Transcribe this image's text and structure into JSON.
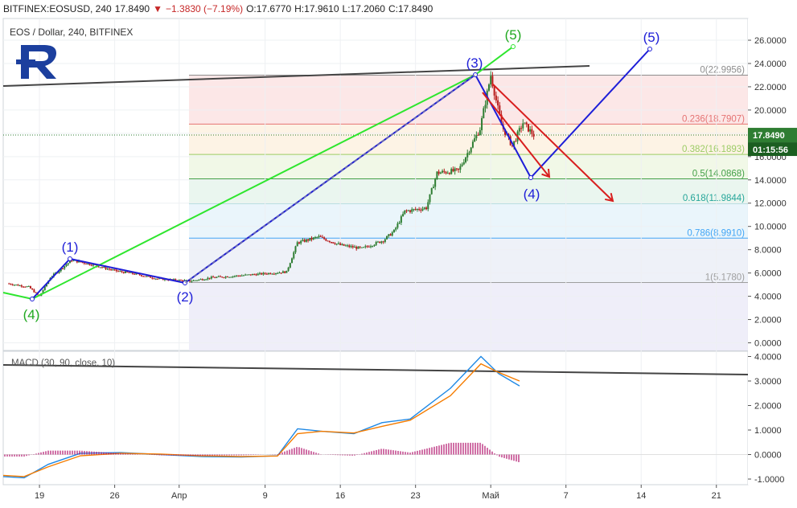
{
  "header": {
    "symbol": "BITFINEX:EOSUSD, 240",
    "last": "17.8490",
    "change": "−1.3830 (−7.19%)",
    "o_label": "O:",
    "o": "17.6770",
    "h_label": "H:",
    "h": "17.9610",
    "l_label": "L:",
    "l": "17.2060",
    "c_label": "C:",
    "c": "17.8490"
  },
  "legend": {
    "title": "EOS / Dollar, 240, BITFINEX"
  },
  "macd_label": "MACD (30, 90, close, 10)",
  "price_badge": "17.8490",
  "time_badge": "01:15:56",
  "colors": {
    "up": "#2e7d32",
    "down": "#b71c1c",
    "wave_green": "#2ee62e",
    "wave_blue": "#1e1ed8",
    "arrow_red": "#d81e1e",
    "trend_line": "#444444",
    "macd": "#1e88e5",
    "signal": "#f57c00",
    "hist": "#b0106a"
  },
  "chart_data": [
    {
      "type": "candlestick",
      "title": "EOS / Dollar, 240, BITFINEX",
      "x_tick_labels": [
        "19",
        "26",
        "Апр",
        "9",
        "16",
        "23",
        "Май",
        "7",
        "14",
        "21"
      ],
      "y_tick_labels": [
        "26.0000",
        "24.0000",
        "22.0000",
        "20.0000",
        "18.0000",
        "16.0000",
        "14.0000",
        "12.0000",
        "10.0000",
        "8.0000",
        "6.0000",
        "4.0000",
        "2.0000",
        "0.0000"
      ],
      "ylim": [
        -0.5,
        27
      ],
      "series_outline": [
        {
          "date": "Mar 16",
          "close": 5.1
        },
        {
          "date": "Mar 18",
          "close": 4.8
        },
        {
          "date": "Mar 19",
          "close": 4.0
        },
        {
          "date": "Mar 20",
          "close": 5.6
        },
        {
          "date": "Mar 22",
          "close": 7.1
        },
        {
          "date": "Mar 24",
          "close": 6.7
        },
        {
          "date": "Mar 26",
          "close": 6.2
        },
        {
          "date": "Mar 28",
          "close": 5.9
        },
        {
          "date": "Mar 30",
          "close": 5.5
        },
        {
          "date": "Apr 1",
          "close": 5.3
        },
        {
          "date": "Apr 3",
          "close": 5.6
        },
        {
          "date": "Apr 6",
          "close": 5.8
        },
        {
          "date": "Apr 10",
          "close": 6.1
        },
        {
          "date": "Apr 11",
          "close": 8.6
        },
        {
          "date": "Apr 13",
          "close": 9.1
        },
        {
          "date": "Apr 15",
          "close": 8.4
        },
        {
          "date": "Apr 17",
          "close": 8.1
        },
        {
          "date": "Apr 19",
          "close": 8.8
        },
        {
          "date": "Apr 20",
          "close": 9.6
        },
        {
          "date": "Apr 21",
          "close": 11.3
        },
        {
          "date": "Apr 23",
          "close": 11.6
        },
        {
          "date": "Apr 24",
          "close": 14.6
        },
        {
          "date": "Apr 26",
          "close": 14.8
        },
        {
          "date": "Apr 28",
          "close": 18.4
        },
        {
          "date": "Apr 29",
          "close": 22.99
        },
        {
          "date": "Apr 30",
          "close": 18.7
        },
        {
          "date": "May 1",
          "close": 16.9
        },
        {
          "date": "May 2",
          "close": 18.9
        },
        {
          "date": "May 3",
          "close": 17.85
        }
      ],
      "fibonacci": [
        {
          "label": "0(22.9956)",
          "value": 22.9956,
          "color": "#8d8d8d"
        },
        {
          "label": "0.236(18.7907)",
          "value": 18.7907,
          "color": "#e57373"
        },
        {
          "label": "0.382(16.1893)",
          "value": 16.1893,
          "color": "#9ccc65"
        },
        {
          "label": "0.5(14.0868)",
          "value": 14.0868,
          "color": "#43a047"
        },
        {
          "label": "0.618(11.9844)",
          "value": 11.9844,
          "color": "#26a69a"
        },
        {
          "label": "0.786(8.9910)",
          "value": 8.991,
          "color": "#42a5f5"
        },
        {
          "label": "1(5.1780)",
          "value": 5.178,
          "color": "#9e9e9e"
        }
      ],
      "wave_labels": [
        {
          "text": "(1)",
          "color": "blue",
          "date": "Mar 22",
          "price": 7.3
        },
        {
          "text": "(2)",
          "color": "blue",
          "date": "Apr 1",
          "price": 5.2
        },
        {
          "text": "(3)",
          "color": "blue",
          "date": "Apr 29",
          "price": 23.0
        },
        {
          "text": "(4)",
          "color": "blue",
          "date": "May 4",
          "price": 14.1
        },
        {
          "text": "(5)",
          "color": "blue",
          "date": "May 15",
          "price": 25.4
        },
        {
          "text": "(4)",
          "color": "green",
          "date": "Mar 19",
          "price": 3.9
        },
        {
          "text": "(5)",
          "color": "green",
          "date": "May 3",
          "price": 25.4
        }
      ]
    },
    {
      "type": "line",
      "title": "MACD (30, 90, close, 10)",
      "y_tick_labels": [
        "4.0000",
        "3.0000",
        "2.0000",
        "1.0000",
        "0.0000",
        "-1.0000"
      ],
      "ylim": [
        -1.25,
        4.2
      ],
      "series": [
        {
          "name": "MACD",
          "values": [
            -0.9,
            -0.95,
            -0.4,
            0.05,
            0.08,
            0.0,
            -0.08,
            -0.1,
            -0.05,
            1.05,
            0.95,
            0.85,
            1.3,
            1.45,
            2.7,
            4.0,
            3.3,
            2.8
          ]
        },
        {
          "name": "Signal",
          "values": [
            -0.85,
            -0.9,
            -0.5,
            -0.05,
            0.05,
            0.02,
            -0.05,
            -0.08,
            -0.06,
            0.85,
            0.95,
            0.88,
            1.15,
            1.4,
            2.4,
            3.7,
            3.35,
            3.0
          ]
        }
      ]
    }
  ]
}
